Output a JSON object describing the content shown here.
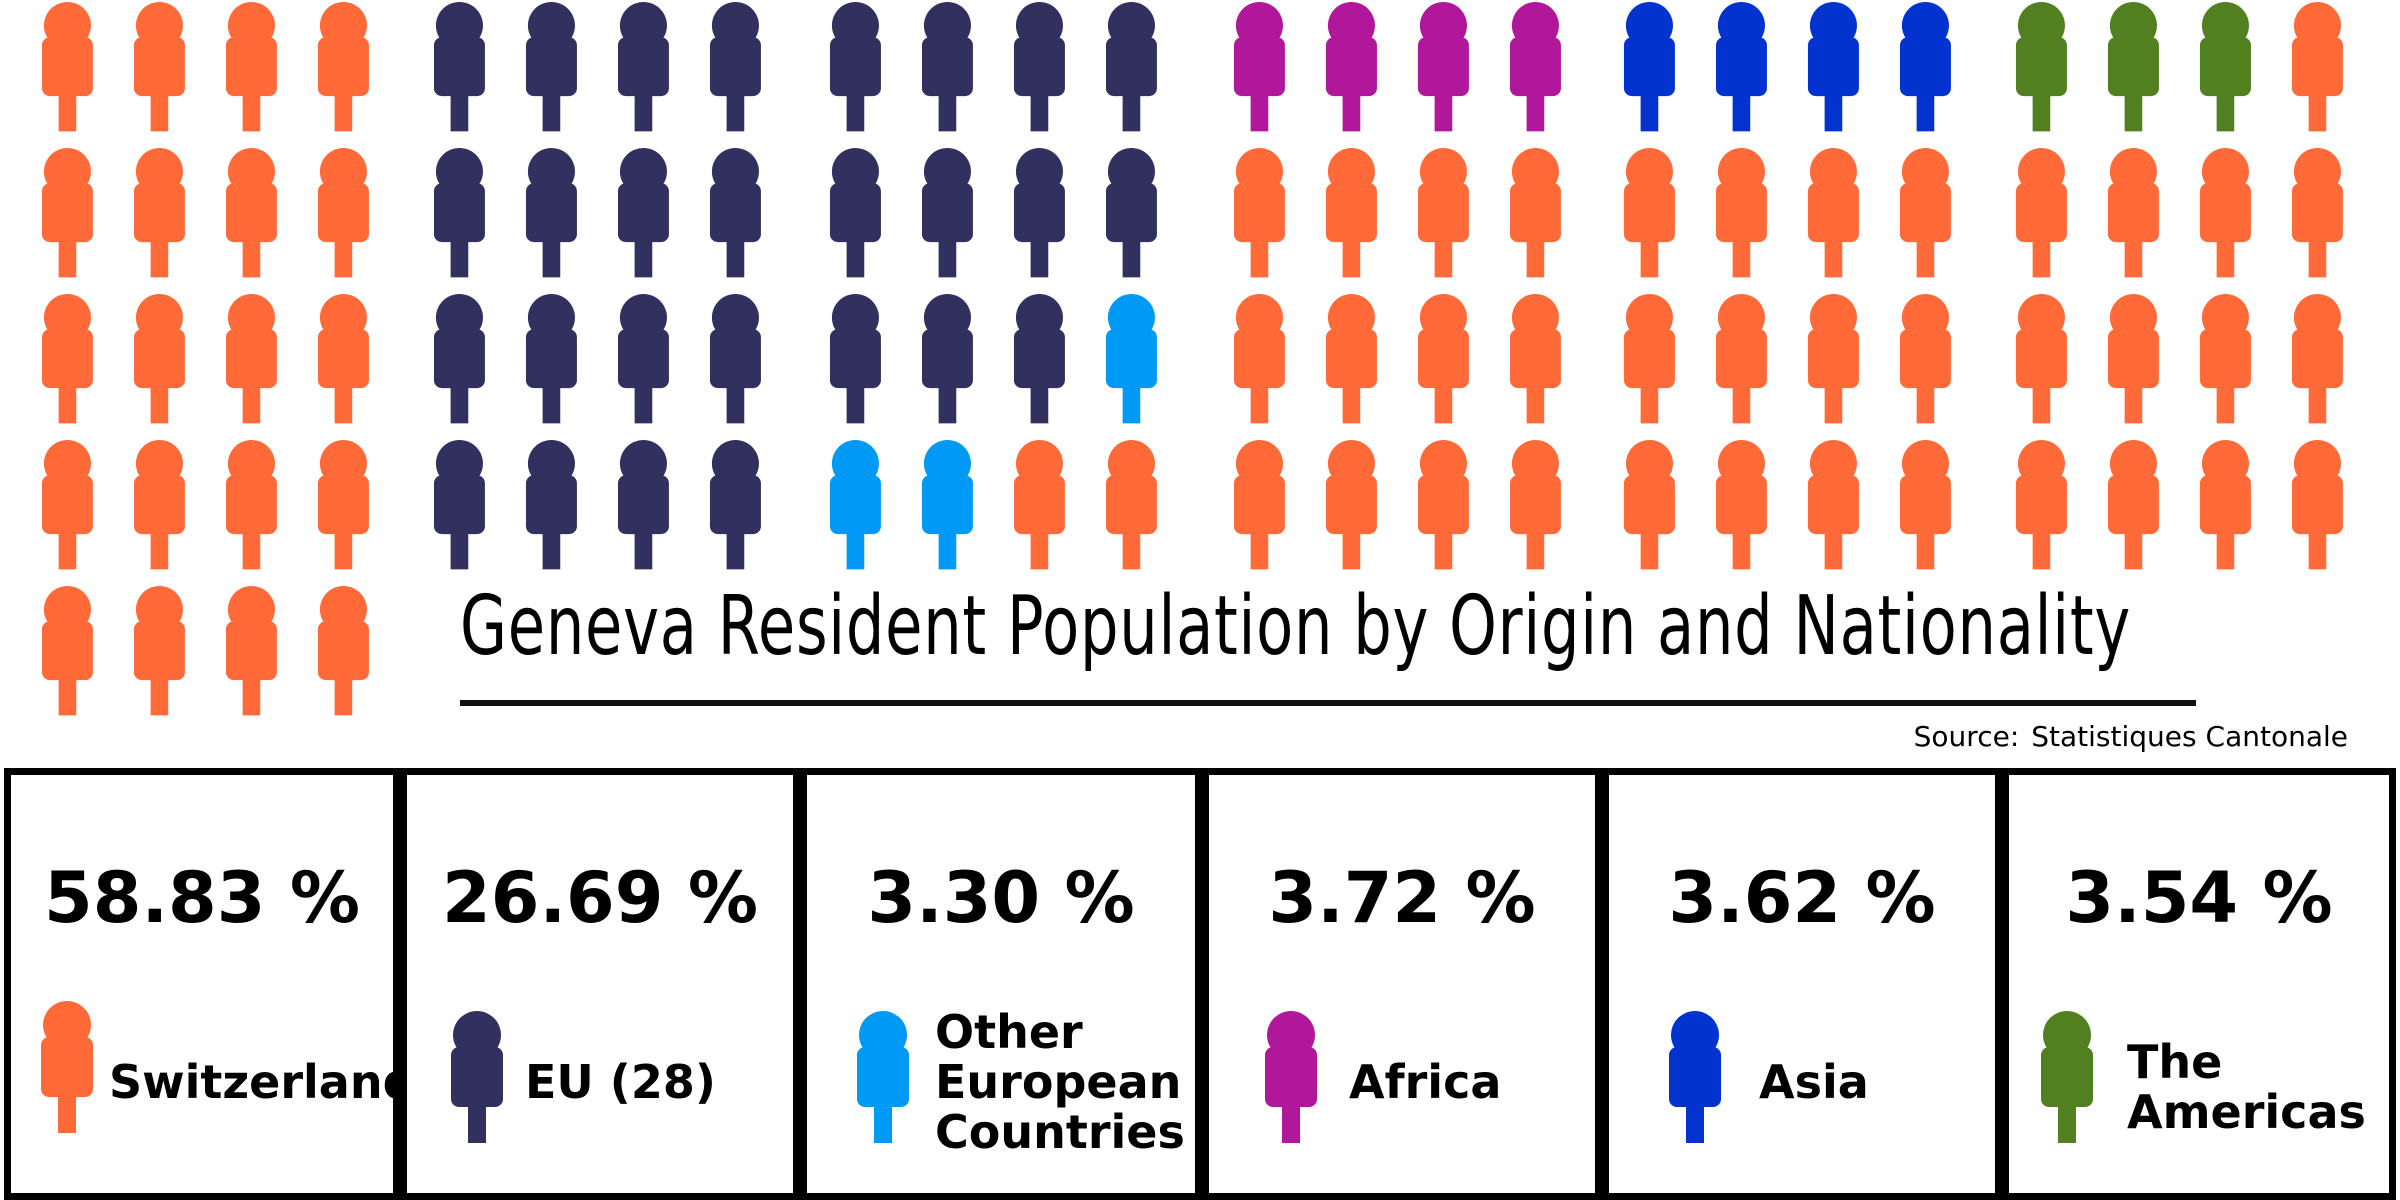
{
  "title": "Geneva Resident Population by Origin and Nationality",
  "source": {
    "label": "Source:",
    "value": "Statistiques Cantonale"
  },
  "colors": {
    "switzerland": "#FF6A38",
    "eu": "#31305E",
    "other_european": "#0099F5",
    "africa": "#B0179A",
    "asia": "#0233CF",
    "americas": "#527F1F"
  },
  "chart_data": {
    "type": "pictogram",
    "title": "Geneva Resident Population by Origin and Nationality",
    "unit": "%",
    "total_icons": 100,
    "categories": [
      "Switzerland",
      "EU (28)",
      "Other European Countries",
      "Africa",
      "Asia",
      "The Americas"
    ],
    "values": [
      58.83,
      26.69,
      3.3,
      3.72,
      3.62,
      3.54
    ],
    "icon_counts": [
      58,
      27,
      3,
      4,
      4,
      3
    ],
    "colors": [
      "#FF6A38",
      "#31305E",
      "#0099F5",
      "#B0179A",
      "#0233CF",
      "#527F1F"
    ]
  },
  "cards": [
    {
      "value": "58.83 %",
      "label": "Switzerland",
      "icon": "person-icon",
      "color": "#FF6A38"
    },
    {
      "value": "26.69 %",
      "label": "EU (28)",
      "icon": "person-icon",
      "color": "#31305E"
    },
    {
      "value": "3.30 %",
      "label": "Other\nEuropean\nCountries",
      "icon": "person-icon",
      "color": "#0099F5"
    },
    {
      "value": "3.72 %",
      "label": "Africa",
      "icon": "person-icon",
      "color": "#B0179A"
    },
    {
      "value": "3.62 %",
      "label": "Asia",
      "icon": "person-icon",
      "color": "#0233CF"
    },
    {
      "value": "3.54 %",
      "label": "The\nAmericas",
      "icon": "person-icon",
      "color": "#527F1F"
    }
  ]
}
